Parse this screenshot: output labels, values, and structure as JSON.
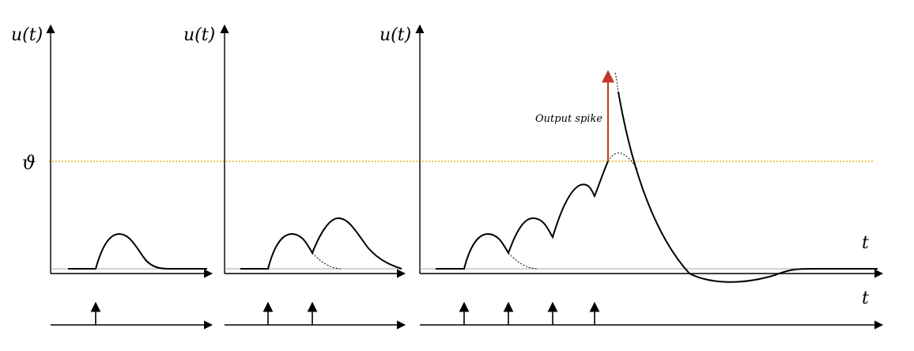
{
  "labels": {
    "u_axis": "u(t)",
    "threshold": "ϑ",
    "t_axis": "t",
    "output_spike": "Output spike"
  },
  "colors": {
    "curve": "#000000",
    "threshold": "#f2b31f",
    "resting": "#888888",
    "spike": "#c0392b"
  }
}
